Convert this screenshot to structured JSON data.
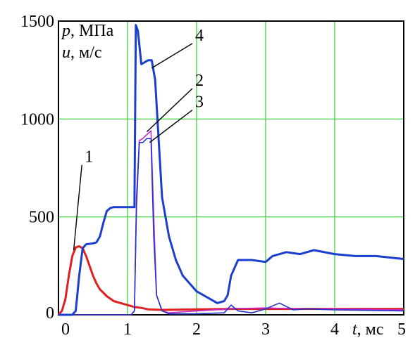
{
  "chart_data": {
    "type": "line",
    "title": "",
    "y_label_1_var": "p",
    "y_label_1_unit": ", МПа",
    "y_label_2_var": "u",
    "y_label_2_unit": ", м/с",
    "x_label_var": "t",
    "x_label_unit": ", мс",
    "xlim": [
      0,
      5
    ],
    "ylim": [
      0,
      1500
    ],
    "x_ticks": [
      0,
      1,
      2,
      3,
      4,
      5
    ],
    "x_tick_labels": [
      "0",
      "1",
      "2",
      "3",
      "4",
      "5"
    ],
    "y_ticks": [
      0,
      500,
      1000,
      1500
    ],
    "y_tick_labels": [
      "0",
      "500",
      "1000",
      "1500"
    ],
    "grid": true,
    "curve_labels": [
      "1",
      "2",
      "3",
      "4"
    ],
    "series": [
      {
        "label": "1",
        "color": "#e02020",
        "x": [
          0.0,
          0.05,
          0.1,
          0.15,
          0.2,
          0.25,
          0.3,
          0.35,
          0.4,
          0.45,
          0.5,
          0.55,
          0.6,
          0.7,
          0.8,
          0.9,
          1.0,
          1.1,
          1.2,
          1.3,
          1.5,
          2.0,
          2.5,
          3.0,
          4.0,
          5.0
        ],
        "y": [
          0,
          20,
          80,
          200,
          300,
          345,
          350,
          340,
          300,
          250,
          200,
          160,
          130,
          95,
          70,
          60,
          50,
          40,
          35,
          28,
          25,
          28,
          30,
          30,
          30,
          30
        ]
      },
      {
        "label": "2",
        "color": "#cc22cc",
        "x": [
          0.0,
          1.05,
          1.1,
          1.13,
          1.17,
          1.22,
          1.28,
          1.34,
          1.38,
          1.42,
          1.5,
          1.6,
          2.0,
          2.5,
          3.0,
          3.5,
          4.0,
          5.0
        ],
        "y": [
          0,
          0,
          20,
          600,
          890,
          900,
          920,
          940,
          500,
          100,
          20,
          10,
          20,
          30,
          35,
          30,
          30,
          25
        ]
      },
      {
        "label": "3",
        "color": "#2233cc",
        "x": [
          0.0,
          1.05,
          1.1,
          1.13,
          1.17,
          1.22,
          1.28,
          1.34,
          1.38,
          1.42,
          1.5,
          1.6,
          2.0,
          2.4,
          2.5,
          2.6,
          2.8,
          3.0,
          3.2,
          3.4,
          3.6,
          4.0,
          5.0
        ],
        "y": [
          0,
          0,
          20,
          550,
          880,
          880,
          900,
          900,
          400,
          100,
          20,
          5,
          5,
          10,
          50,
          20,
          10,
          30,
          60,
          25,
          30,
          25,
          20
        ]
      },
      {
        "label": "4",
        "color": "#1a3fcf",
        "x": [
          0.0,
          0.2,
          0.25,
          0.3,
          0.35,
          0.4,
          0.5,
          0.55,
          0.6,
          0.65,
          0.7,
          0.75,
          0.8,
          1.0,
          1.1,
          1.12,
          1.15,
          1.2,
          1.25,
          1.3,
          1.35,
          1.4,
          1.45,
          1.5,
          1.6,
          1.7,
          1.8,
          2.0,
          2.2,
          2.3,
          2.4,
          2.45,
          2.5,
          2.6,
          2.8,
          3.0,
          3.1,
          3.3,
          3.5,
          3.7,
          4.0,
          4.3,
          4.6,
          5.0
        ],
        "y": [
          0,
          0,
          20,
          200,
          340,
          360,
          365,
          370,
          400,
          470,
          530,
          545,
          550,
          550,
          550,
          1480,
          1450,
          1280,
          1290,
          1300,
          1300,
          1200,
          900,
          600,
          400,
          280,
          200,
          120,
          80,
          60,
          70,
          100,
          200,
          280,
          280,
          270,
          300,
          320,
          310,
          330,
          310,
          300,
          300,
          285
        ]
      }
    ],
    "annotations": [
      {
        "label": "1",
        "text_x": 0.4,
        "text_y": 780,
        "target_x": 0.22,
        "target_y": 330
      },
      {
        "label": "2",
        "text_x": 2.0,
        "text_y": 1170,
        "target_x": 1.28,
        "target_y": 935
      },
      {
        "label": "3",
        "text_x": 2.0,
        "text_y": 1060,
        "target_x": 1.32,
        "target_y": 880
      },
      {
        "label": "4",
        "text_x": 2.0,
        "text_y": 1400,
        "target_x": 1.35,
        "target_y": 1260
      }
    ]
  }
}
